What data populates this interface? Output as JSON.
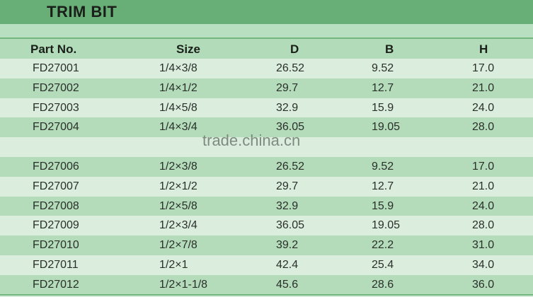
{
  "title": "TRIM BIT",
  "columns": [
    "Part No.",
    "Size",
    "D",
    "B",
    "H"
  ],
  "rows": [
    [
      "FD27001",
      "1/4×3/8",
      "26.52",
      "9.52",
      "17.0"
    ],
    [
      "FD27002",
      "1/4×1/2",
      "29.7",
      "12.7",
      "21.0"
    ],
    [
      "FD27003",
      "1/4×5/8",
      "32.9",
      "15.9",
      "24.0"
    ],
    [
      "FD27004",
      "1/4×3/4",
      "36.05",
      "19.05",
      "28.0"
    ],
    [
      "",
      "",
      "",
      "",
      ""
    ],
    [
      "FD27006",
      "1/2×3/8",
      "26.52",
      "9.52",
      "17.0"
    ],
    [
      "FD27007",
      "1/2×1/2",
      "29.7",
      "12.7",
      "21.0"
    ],
    [
      "FD27008",
      "1/2×5/8",
      "32.9",
      "15.9",
      "24.0"
    ],
    [
      "FD27009",
      "1/2×3/4",
      "36.05",
      "19.05",
      "28.0"
    ],
    [
      "FD27010",
      "1/2×7/8",
      "39.2",
      "22.2",
      "31.0"
    ],
    [
      "FD27011",
      "1/2×1",
      "42.4",
      "25.4",
      "34.0"
    ],
    [
      "FD27012",
      "1/2×1-1/8",
      "45.6",
      "28.6",
      "36.0"
    ]
  ],
  "watermark": "trade.china.cn",
  "colors": {
    "title_bar": "#68af77",
    "row_light": "#dbeedd",
    "row_green": "#b4dcbb"
  }
}
